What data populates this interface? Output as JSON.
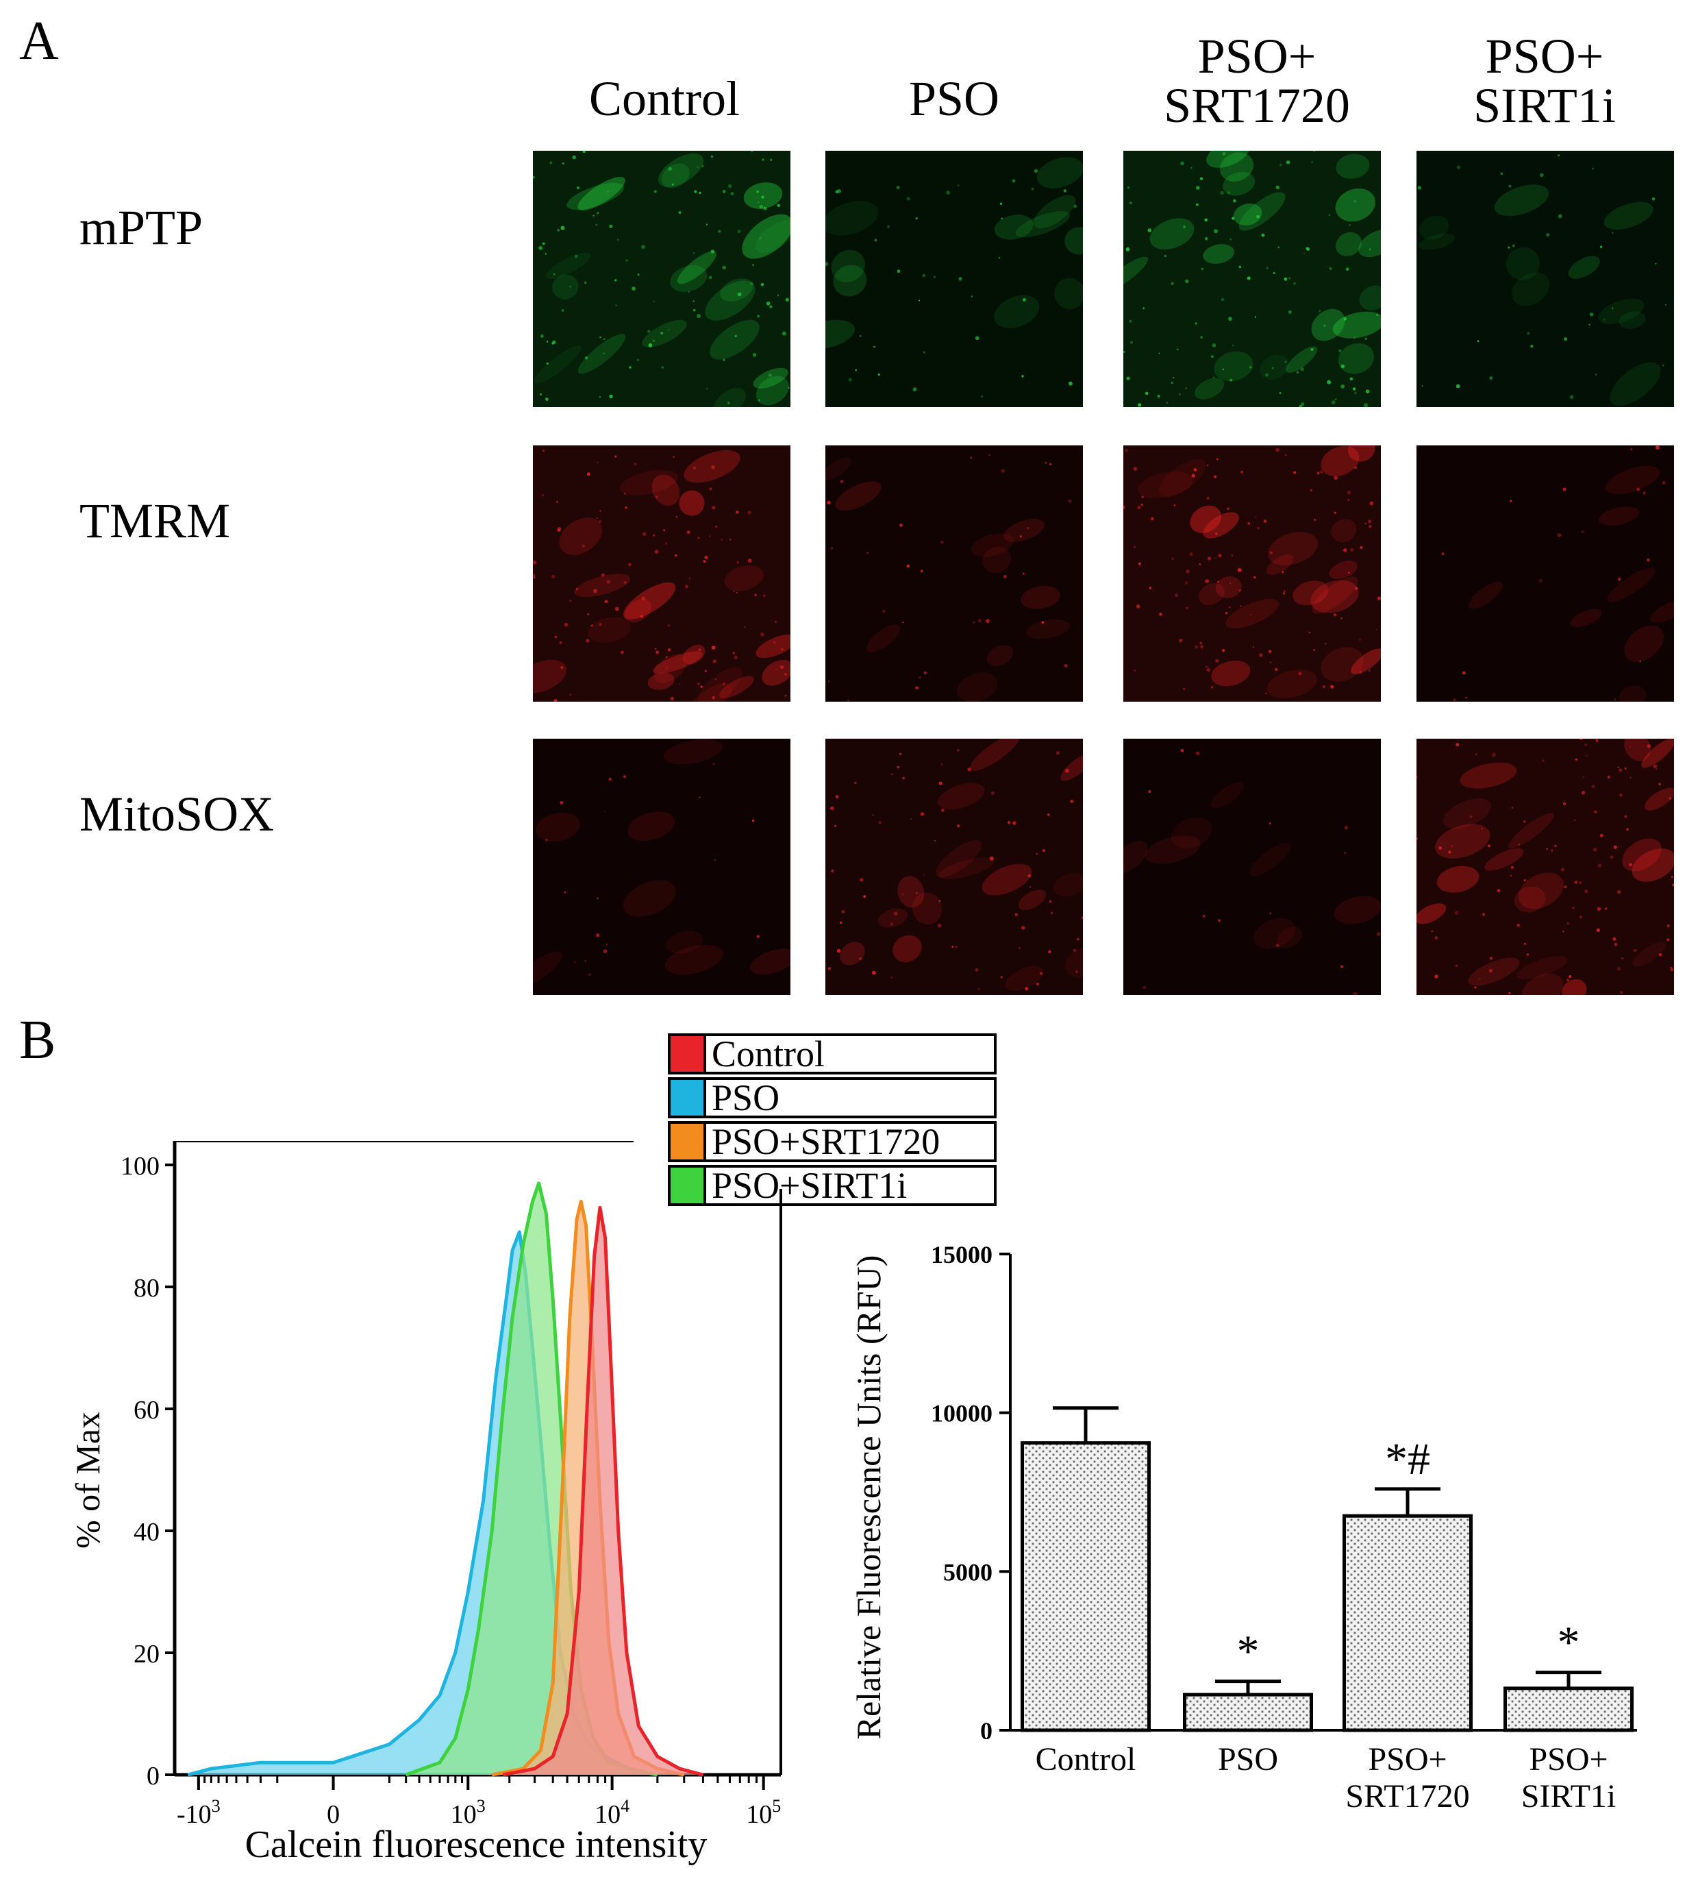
{
  "panels": {
    "a": "A",
    "b": "B"
  },
  "microscopy": {
    "columns": [
      {
        "line1": "Control",
        "line2": ""
      },
      {
        "line1": "PSO",
        "line2": ""
      },
      {
        "line1": "PSO+",
        "line2": "SRT1720"
      },
      {
        "line1": "PSO+",
        "line2": "SIRT1i"
      }
    ],
    "rows": [
      {
        "label": "mPTP",
        "stain": "green",
        "intensity": [
          0.85,
          0.3,
          0.85,
          0.25
        ]
      },
      {
        "label": "TMRM",
        "stain": "red",
        "intensity": [
          0.85,
          0.25,
          0.85,
          0.15
        ]
      },
      {
        "label": "MitoSOX",
        "stain": "red",
        "intensity": [
          0.15,
          0.55,
          0.12,
          0.8
        ]
      }
    ],
    "colors": {
      "green": "#22c83a",
      "red": "#e02020"
    }
  },
  "chart_data": [
    {
      "type": "area",
      "xlabel": "Calcein fluorescence intensity",
      "ylabel": "% of Max",
      "x_scale": "biexponential",
      "x_ticks": [
        {
          "base": "-10",
          "exp": "3",
          "pos": -1000
        },
        {
          "base": "0",
          "exp": "",
          "pos": 0
        },
        {
          "base": "10",
          "exp": "3",
          "pos": 1000
        },
        {
          "base": "10",
          "exp": "4",
          "pos": 10000
        },
        {
          "base": "10",
          "exp": "5",
          "pos": 100000
        }
      ],
      "y_ticks": [
        "0",
        "20",
        "40",
        "60",
        "80",
        "100"
      ],
      "ylim": [
        0,
        100
      ],
      "legend": {
        "placement": "top"
      },
      "series": [
        {
          "name": "Control",
          "color": "#e8232a",
          "fill": "#f08a8a",
          "points": [
            [
              1800,
              0
            ],
            [
              3000,
              1
            ],
            [
              4000,
              3
            ],
            [
              5000,
              10
            ],
            [
              6000,
              30
            ],
            [
              6800,
              60
            ],
            [
              7600,
              85
            ],
            [
              8300,
              93
            ],
            [
              9000,
              88
            ],
            [
              9800,
              68
            ],
            [
              11000,
              40
            ],
            [
              12500,
              20
            ],
            [
              15000,
              8
            ],
            [
              20000,
              3
            ],
            [
              28000,
              1
            ],
            [
              40000,
              0
            ]
          ]
        },
        {
          "name": "PSO",
          "color": "#1fb3e0",
          "fill": "#6fd3ee",
          "points": [
            [
              -1200,
              0
            ],
            [
              -800,
              1
            ],
            [
              -300,
              2
            ],
            [
              0,
              2
            ],
            [
              200,
              5
            ],
            [
              400,
              9
            ],
            [
              600,
              13
            ],
            [
              800,
              20
            ],
            [
              1000,
              30
            ],
            [
              1300,
              45
            ],
            [
              1600,
              65
            ],
            [
              1900,
              78
            ],
            [
              2100,
              86
            ],
            [
              2350,
              89
            ],
            [
              2600,
              82
            ],
            [
              2900,
              70
            ],
            [
              3300,
              55
            ],
            [
              3800,
              38
            ],
            [
              4500,
              20
            ],
            [
              5500,
              10
            ],
            [
              7000,
              5
            ],
            [
              9000,
              3
            ],
            [
              13000,
              1
            ],
            [
              20000,
              0
            ]
          ]
        },
        {
          "name": "PSO+SRT1720",
          "color": "#f28c1e",
          "fill": "#f6b276",
          "points": [
            [
              1500,
              0
            ],
            [
              2500,
              1
            ],
            [
              3300,
              4
            ],
            [
              4000,
              15
            ],
            [
              4600,
              45
            ],
            [
              5200,
              75
            ],
            [
              5800,
              91
            ],
            [
              6200,
              94
            ],
            [
              6700,
              90
            ],
            [
              7400,
              70
            ],
            [
              8300,
              45
            ],
            [
              9500,
              22
            ],
            [
              11000,
              10
            ],
            [
              14000,
              3
            ],
            [
              20000,
              1
            ],
            [
              30000,
              0
            ]
          ]
        },
        {
          "name": "PSO+SIRT1i",
          "color": "#3ed23e",
          "fill": "#8ee68c",
          "points": [
            [
              300,
              0
            ],
            [
              600,
              2
            ],
            [
              800,
              6
            ],
            [
              1000,
              14
            ],
            [
              1200,
              24
            ],
            [
              1500,
              40
            ],
            [
              1800,
              60
            ],
            [
              2100,
              75
            ],
            [
              2500,
              87
            ],
            [
              2900,
              94
            ],
            [
              3200,
              97
            ],
            [
              3600,
              92
            ],
            [
              4000,
              78
            ],
            [
              4600,
              55
            ],
            [
              5300,
              30
            ],
            [
              6200,
              14
            ],
            [
              7500,
              6
            ],
            [
              9500,
              2
            ],
            [
              13000,
              1
            ],
            [
              20000,
              0
            ]
          ]
        }
      ]
    },
    {
      "type": "bar",
      "ylabel": "Relative Fluorescence Units (RFU)",
      "categories": [
        {
          "line1": "Control",
          "line2": ""
        },
        {
          "line1": "PSO",
          "line2": ""
        },
        {
          "line1": "PSO+",
          "line2": "SRT1720"
        },
        {
          "line1": "PSO+",
          "line2": "SIRT1i"
        }
      ],
      "values": [
        9050,
        1120,
        6750,
        1320
      ],
      "errors": [
        1100,
        420,
        850,
        500
      ],
      "annotations": [
        "",
        "*",
        "*#",
        "*"
      ],
      "y_ticks": [
        "0",
        "5000",
        "10000",
        "15000"
      ],
      "ylim": [
        0,
        15000
      ]
    }
  ]
}
